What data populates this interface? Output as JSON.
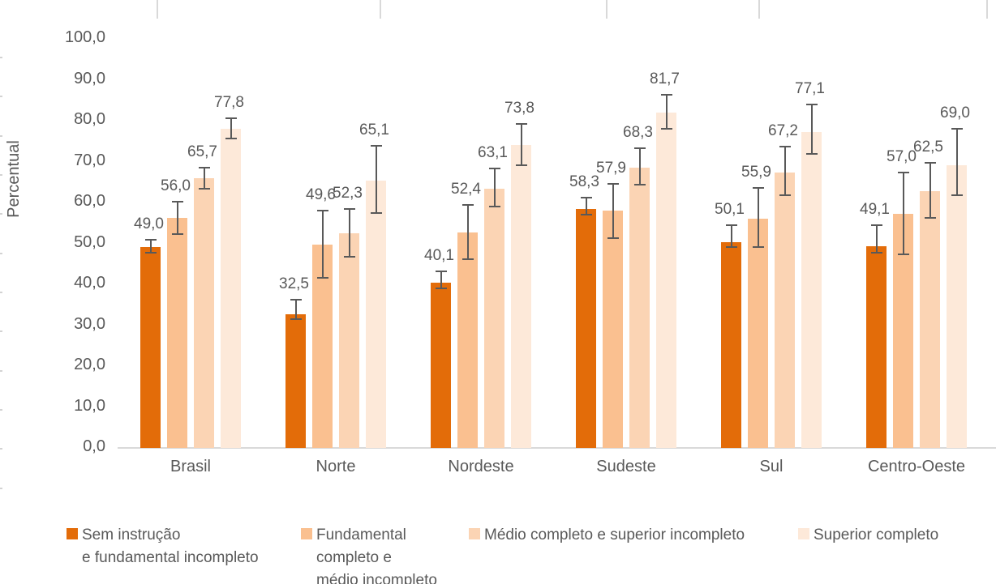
{
  "chart_data": {
    "type": "bar",
    "title": "",
    "xlabel": "",
    "ylabel": "Percentual",
    "ylim": [
      0,
      100
    ],
    "ytick_step": 10,
    "ytick_labels": [
      "0,0",
      "10,0",
      "20,0",
      "30,0",
      "40,0",
      "50,0",
      "60,0",
      "70,0",
      "80,0",
      "90,0",
      "100,0"
    ],
    "grid": false,
    "legend_position": "bottom",
    "decimal_separator": ",",
    "error_bars": true,
    "categories": [
      "Brasil",
      "Norte",
      "Nordeste",
      "Sudeste",
      "Sul",
      "Centro-Oeste"
    ],
    "series": [
      {
        "name": "Sem instrução e fundamental incompleto",
        "legend_lines": [
          "Sem instrução",
          "e fundamental incompleto"
        ],
        "color": "#E36C09",
        "values": [
          49.0,
          32.5,
          40.1,
          58.3,
          50.1,
          49.1
        ],
        "labels": [
          "49,0",
          "32,5",
          "40,1",
          "58,3",
          "50,1",
          "49,1"
        ],
        "err_low": [
          47.6,
          31.2,
          38.9,
          56.8,
          48.9,
          47.6
        ],
        "err_high": [
          50.6,
          36.0,
          42.9,
          60.9,
          54.2,
          54.2
        ]
      },
      {
        "name": "Fundamental completo e médio incompleto",
        "legend_lines": [
          "Fundamental",
          "completo e",
          "médio incompleto"
        ],
        "color": "#FAC090",
        "values": [
          56.0,
          49.6,
          52.4,
          57.9,
          55.9,
          57.0
        ],
        "labels": [
          "56,0",
          "49,6",
          "52,4",
          "57,9",
          "55,9",
          "57,0"
        ],
        "err_low": [
          52.0,
          41.4,
          46.0,
          51.1,
          49.0,
          47.2
        ],
        "err_high": [
          60.0,
          57.8,
          59.3,
          64.4,
          63.3,
          67.1
        ]
      },
      {
        "name": "Médio completo e superior incompleto",
        "legend_lines": [
          "Médio completo e superior incompleto"
        ],
        "color": "#FBD4B4",
        "values": [
          65.7,
          52.3,
          63.1,
          68.3,
          67.2,
          62.5
        ],
        "labels": [
          "65,7",
          "52,3",
          "63,1",
          "68,3",
          "67,2",
          "62,5"
        ],
        "err_low": [
          63.2,
          46.5,
          58.8,
          64.1,
          61.5,
          56.0
        ],
        "err_high": [
          68.3,
          58.3,
          68.1,
          73.1,
          73.4,
          69.5
        ]
      },
      {
        "name": "Superior completo",
        "legend_lines": [
          "Superior completo"
        ],
        "color": "#FDE9D9",
        "values": [
          77.8,
          65.1,
          73.8,
          81.7,
          77.1,
          69.0
        ],
        "labels": [
          "77,8",
          "65,1",
          "73,8",
          "81,7",
          "77,1",
          "69,0"
        ],
        "err_low": [
          75.4,
          57.2,
          68.9,
          77.8,
          71.6,
          61.6
        ],
        "err_high": [
          80.4,
          73.7,
          79.1,
          86.2,
          83.7,
          77.8
        ]
      }
    ],
    "colors": {
      "text": "#595959",
      "error_bar": "#595959",
      "axis_line": "#D9D9D9",
      "background_ticks": "#D3D3D3"
    }
  }
}
